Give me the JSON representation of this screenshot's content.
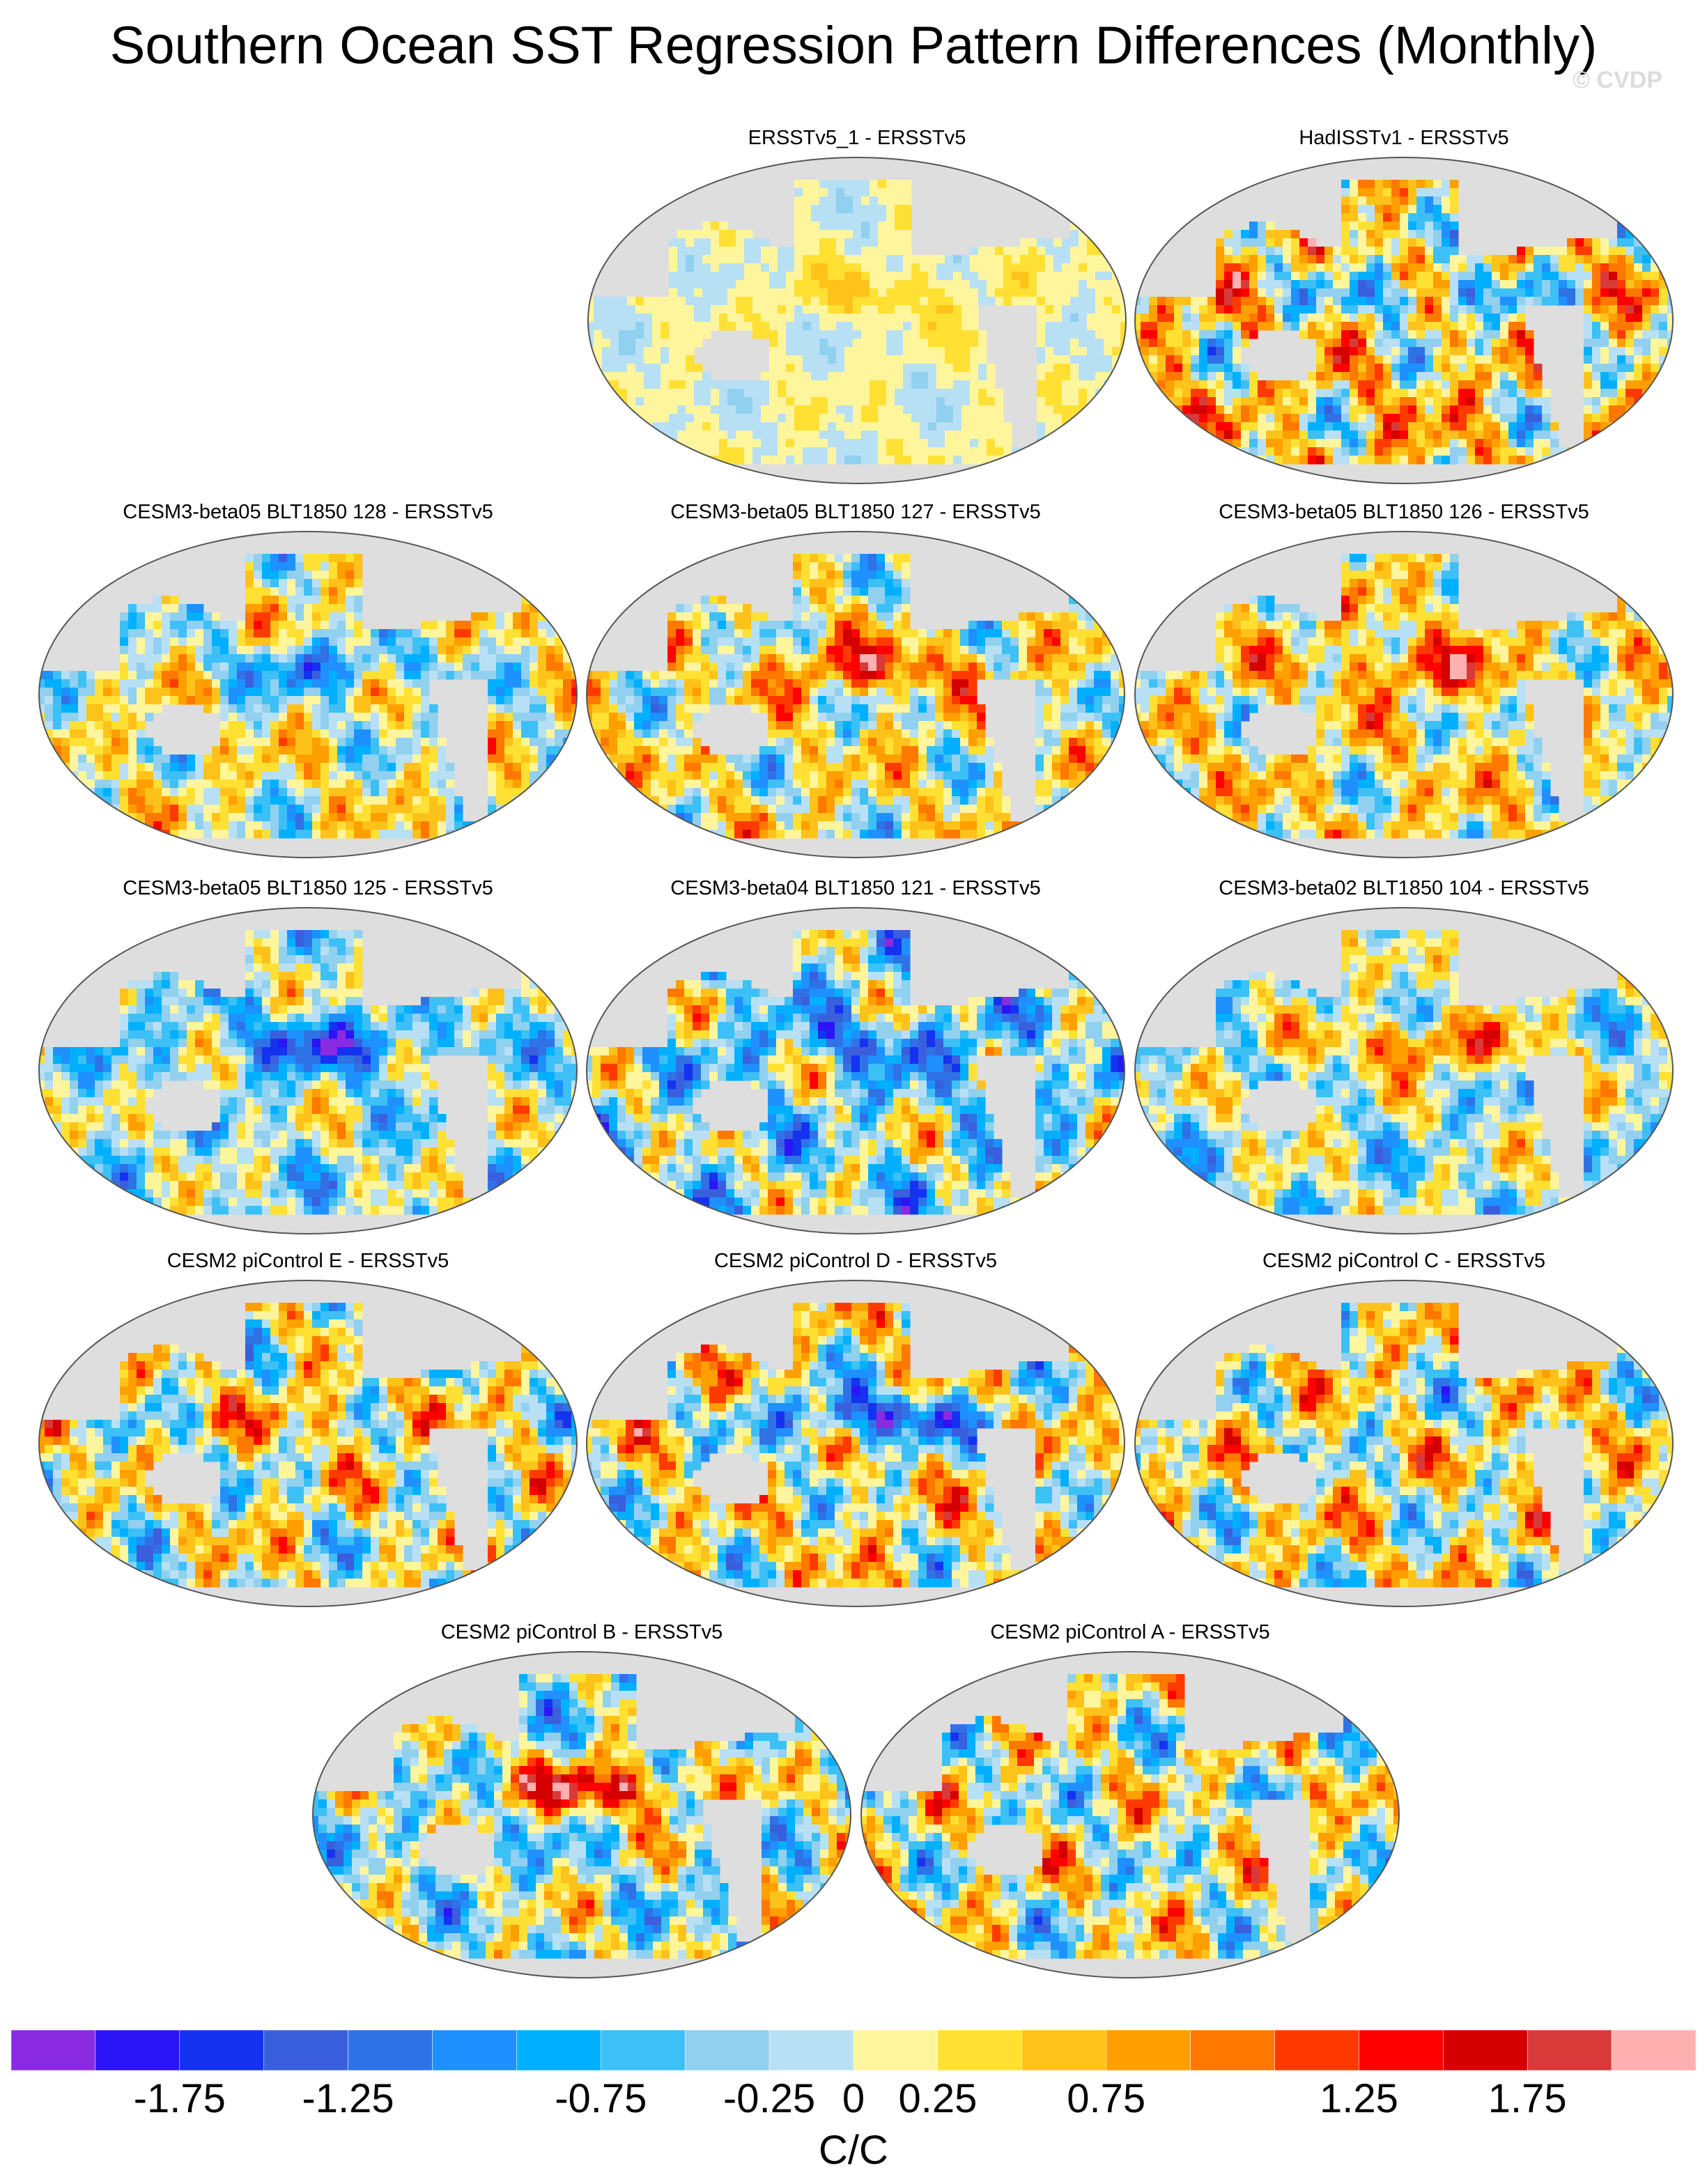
{
  "title": "Southern Ocean SST Regression Pattern Differences (Monthly)",
  "watermark": "© CVDP",
  "panels": [
    {
      "title": "ERSSTv5_1 - ERSSTv5",
      "amplitude": 0.35,
      "bias": 0.05
    },
    {
      "title": "HadISSTv1 - ERSSTv5",
      "amplitude": 1.6,
      "bias": 0.4
    },
    {
      "title": "CESM3-beta05 BLT1850 128 - ERSSTv5",
      "amplitude": 1.2,
      "bias": 0.1
    },
    {
      "title": "CESM3-beta05 BLT1850 127 - ERSSTv5",
      "amplitude": 1.3,
      "bias": 0.15
    },
    {
      "title": "CESM3-beta05 BLT1850 126 - ERSSTv5",
      "amplitude": 1.3,
      "bias": 0.25
    },
    {
      "title": "CESM3-beta05 BLT1850 125 - ERSSTv5",
      "amplitude": 1.2,
      "bias": -0.2
    },
    {
      "title": "CESM3-beta04 BLT1850 121 - ERSSTv5",
      "amplitude": 1.5,
      "bias": -0.25
    },
    {
      "title": "CESM3-beta02 BLT1850 104 - ERSSTv5",
      "amplitude": 1.2,
      "bias": -0.15
    },
    {
      "title": "CESM2 piControl E - ERSSTv5",
      "amplitude": 1.5,
      "bias": 0.1
    },
    {
      "title": "CESM2 piControl D - ERSSTv5",
      "amplitude": 1.5,
      "bias": 0.2
    },
    {
      "title": "CESM2 piControl C - ERSSTv5",
      "amplitude": 1.5,
      "bias": 0.2
    },
    {
      "title": "CESM2 piControl B - ERSSTv5",
      "amplitude": 1.4,
      "bias": -0.1
    },
    {
      "title": "CESM2 piControl A - ERSSTv5",
      "amplitude": 1.5,
      "bias": 0.1
    }
  ],
  "colorbar": {
    "colors": [
      "#8a2be2",
      "#2b14f5",
      "#1432f0",
      "#3a5fdc",
      "#2f72e6",
      "#1e90ff",
      "#00b0ff",
      "#3cc0f5",
      "#91d0ef",
      "#b8e0f5",
      "#fff59d",
      "#ffe033",
      "#ffc21a",
      "#ff9f00",
      "#ff7800",
      "#ff3a00",
      "#ff0000",
      "#d40000",
      "#d83a3a",
      "#ffb0b0"
    ],
    "labels": [
      "-1.75",
      "-1.25",
      "-0.75",
      "-0.25",
      "0",
      "0.25",
      "0.75",
      "1.25",
      "1.75"
    ],
    "min": -2.25,
    "max": 2.25,
    "label_values": [
      -1.75,
      -1.25,
      -0.75,
      -0.25,
      0,
      0.25,
      0.75,
      1.25,
      1.75
    ],
    "units": "C/C"
  }
}
